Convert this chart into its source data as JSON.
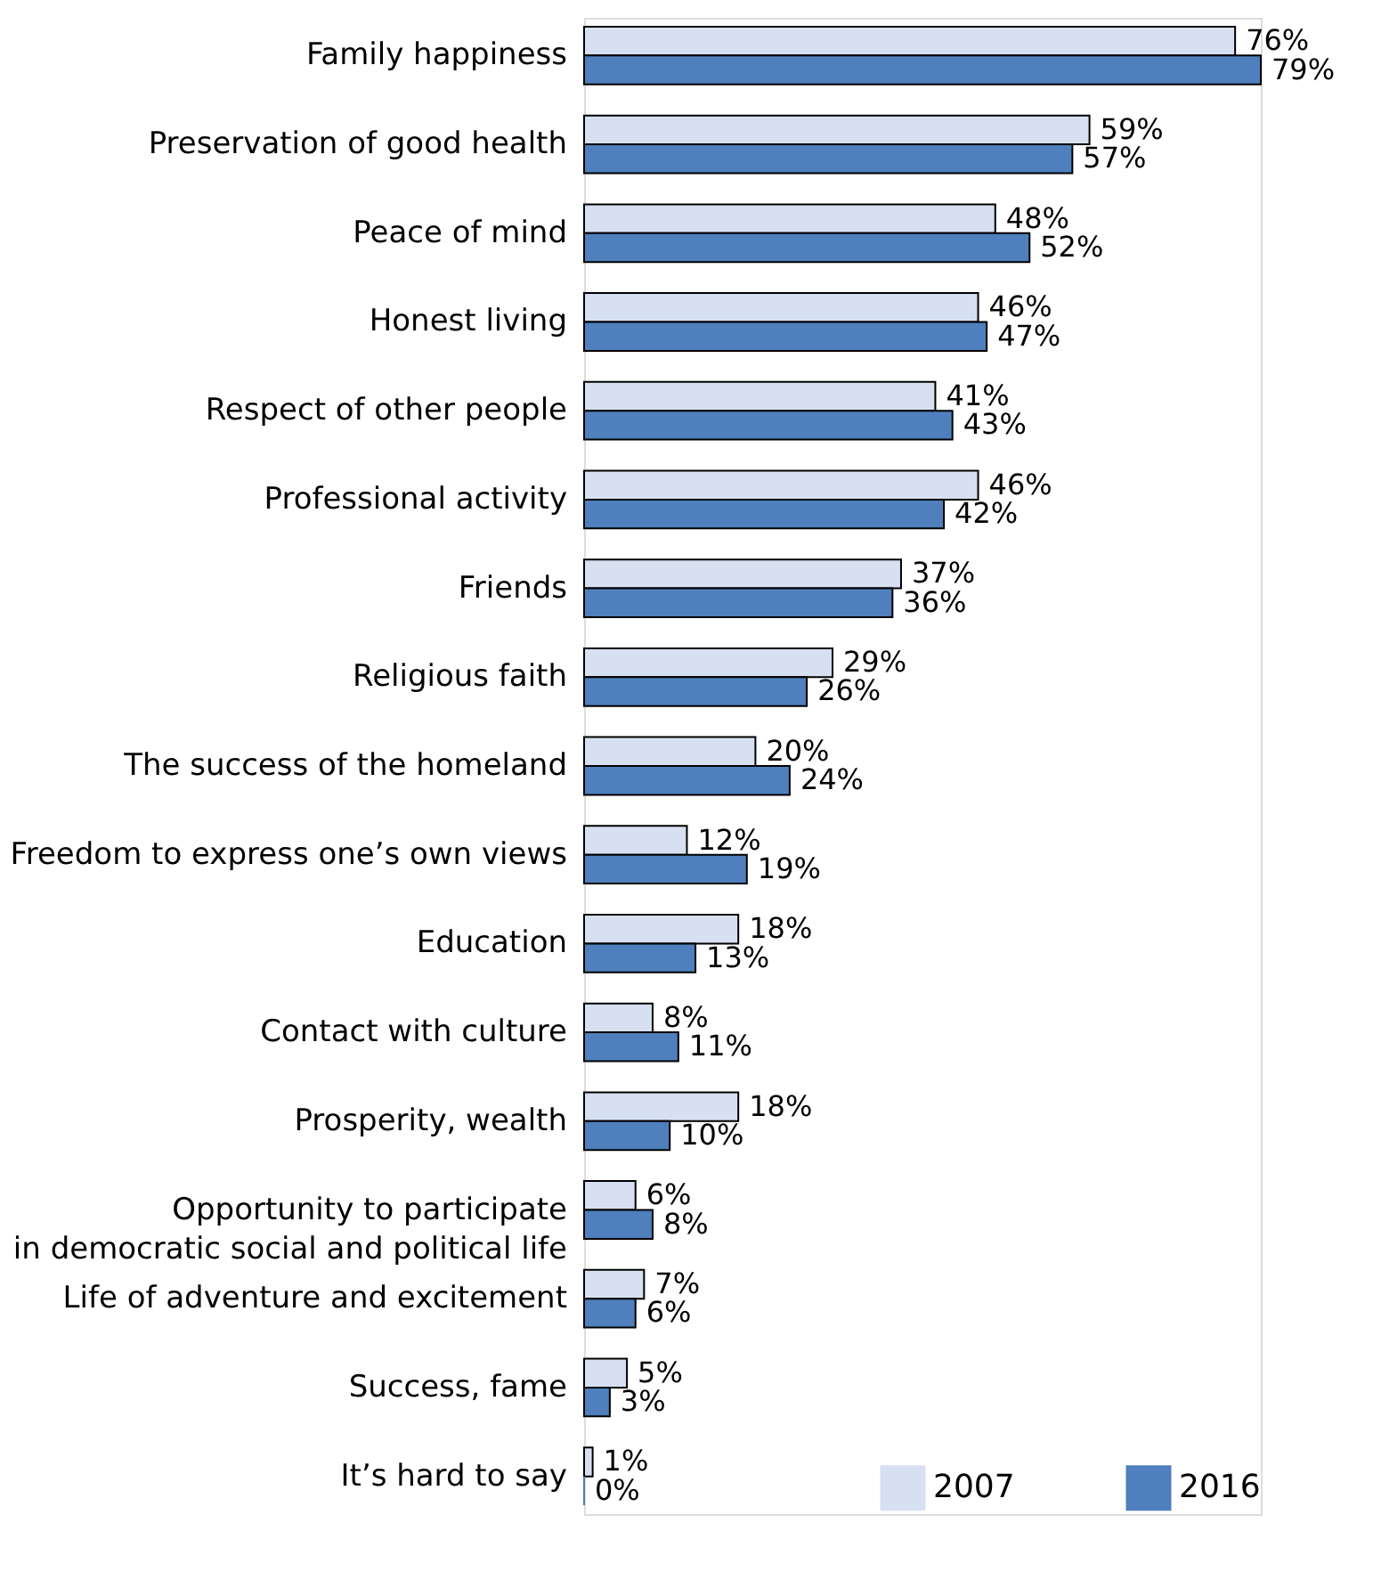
{
  "chart_data": {
    "type": "bar",
    "orientation": "horizontal",
    "legend": "bottom right",
    "categories": [
      "Family happiness",
      "Preservation of good health",
      "Peace of mind",
      "Honest living",
      "Respect of other people",
      "Professional activity",
      "Friends",
      "Religious faith",
      "The success of the homeland",
      "Freedom to express one’s own views",
      "Education",
      "Contact with culture",
      "Prosperity, wealth",
      "Opportunity to participate\nin democratic social and political life",
      "Life of adventure and excitement",
      "Success, fame",
      "It’s hard to say"
    ],
    "series": [
      {
        "name": "2007",
        "color": "#d6e0f1",
        "values": [
          76,
          59,
          48,
          46,
          41,
          46,
          37,
          29,
          20,
          12,
          18,
          8,
          18,
          6,
          7,
          5,
          1
        ],
        "value_labels": [
          "76%",
          "59%",
          "48%",
          "46%",
          "41%",
          "46%",
          "37%",
          "29%",
          "20%",
          "12%",
          "18%",
          "8%",
          "18%",
          "6%",
          "7%",
          "5%",
          "1%"
        ]
      },
      {
        "name": "2016",
        "color": "#4f7fbc",
        "values": [
          79,
          57,
          52,
          47,
          43,
          42,
          36,
          26,
          24,
          19,
          13,
          11,
          10,
          8,
          6,
          3,
          0
        ],
        "value_labels": [
          "79%",
          "57%",
          "52%",
          "47%",
          "43%",
          "42%",
          "36%",
          "26%",
          "24%",
          "19%",
          "13%",
          "11%",
          "10%",
          "8%",
          "6%",
          "3%",
          "0%"
        ]
      }
    ]
  }
}
